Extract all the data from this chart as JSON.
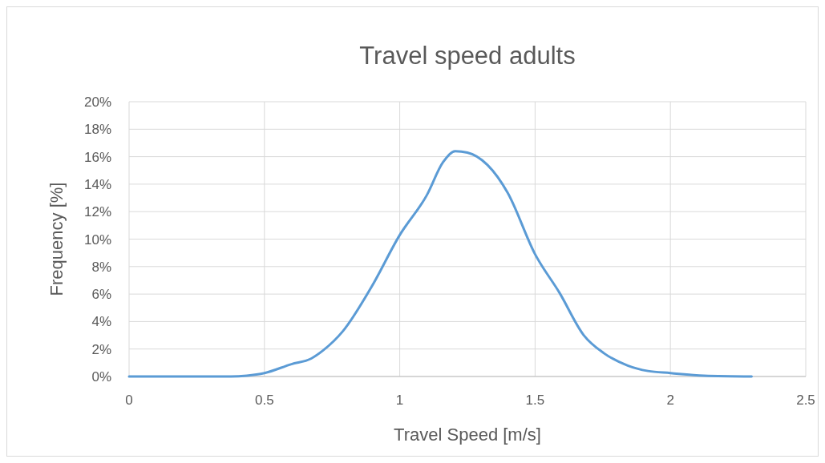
{
  "chart_data": {
    "type": "line",
    "title": "Travel speed adults",
    "xlabel": "Travel Speed [m/s]",
    "ylabel": "Frequency [%]",
    "x": [
      0,
      0.376,
      0.435,
      0.5,
      0.6,
      0.672,
      0.717,
      0.79,
      0.895,
      1.0,
      1.1,
      1.16,
      1.205,
      1.25,
      1.324,
      1.398,
      1.5,
      1.59,
      1.68,
      1.754,
      1.842,
      1.917,
      2.0,
      2.124,
      2.3
    ],
    "series": [
      {
        "color": "#5b9bd5",
        "values": [
          0,
          0,
          0.06,
          0.25,
          0.9,
          1.3,
          1.9,
          3.3,
          6.5,
          10.3,
          13.2,
          15.6,
          16.4,
          16.3,
          15.4,
          13.4,
          8.9,
          6.1,
          3.0,
          1.7,
          0.8,
          0.4,
          0.25,
          0.06,
          0
        ]
      }
    ],
    "xlim": [
      0,
      2.5
    ],
    "xticks": [
      0,
      0.5,
      1,
      1.5,
      2,
      2.5
    ],
    "ylim": [
      0,
      20
    ],
    "yticks": [
      {
        "value": 0,
        "label": "0%"
      },
      {
        "value": 2,
        "label": "2%"
      },
      {
        "value": 4,
        "label": "4%"
      },
      {
        "value": 6,
        "label": "6%"
      },
      {
        "value": 8,
        "label": "8%"
      },
      {
        "value": 10,
        "label": "10%"
      },
      {
        "value": 12,
        "label": "12%"
      },
      {
        "value": 14,
        "label": "14%"
      },
      {
        "value": 16,
        "label": "16%"
      },
      {
        "value": 18,
        "label": "18%"
      },
      {
        "value": 20,
        "label": "20%"
      }
    ],
    "grid": true,
    "marker": "none",
    "line_style": "solid"
  }
}
